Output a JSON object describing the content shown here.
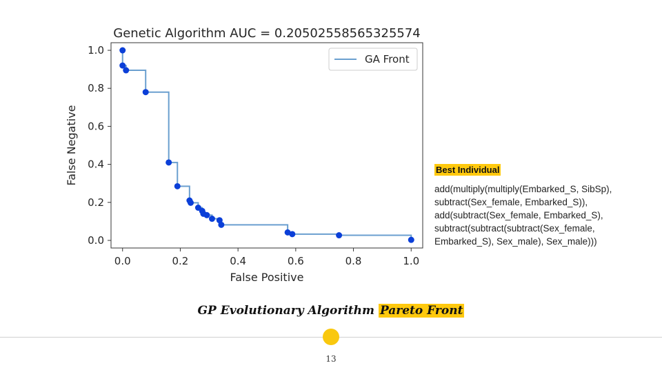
{
  "slide": {
    "best_heading": "Best Individual",
    "best_expression": "add(multiply(multiply(Embarked_S, SibSp),\nsubtract(Sex_female, Embarked_S)),\nadd(subtract(Sex_female, Embarked_S),\nsubtract(subtract(subtract(Sex_female,\nEmbarked_S), Sex_male), Sex_male)))",
    "caption_prefix": "GP Evolutionary Algorithm",
    "caption_highlight": "Pareto Front",
    "page_number": "13",
    "accent_color": "#ffc90e"
  },
  "chart_data": {
    "type": "line",
    "title": "Genetic Algorithm AUC = 0.20502558565325574",
    "xlabel": "False Positive",
    "ylabel": "False Negative",
    "xlim": [
      -0.04,
      1.04
    ],
    "ylim": [
      -0.04,
      1.04
    ],
    "x_ticks": [
      0.0,
      0.2,
      0.4,
      0.6,
      0.8,
      1.0
    ],
    "y_ticks": [
      0.0,
      0.2,
      0.4,
      0.6,
      0.8,
      1.0
    ],
    "x_tick_labels": [
      "0.0",
      "0.2",
      "0.4",
      "0.6",
      "0.8",
      "1.0"
    ],
    "y_tick_labels": [
      "0.0",
      "0.2",
      "0.4",
      "0.6",
      "0.8",
      "1.0"
    ],
    "grid": false,
    "legend_position": "top-right",
    "series": [
      {
        "name": "GA Front",
        "line_color": "#6a9fcf",
        "marker_color": "#0b3fd8",
        "step": true,
        "points": [
          [
            0.0,
            1.0
          ],
          [
            0.0,
            0.92
          ],
          [
            0.012,
            0.895
          ],
          [
            0.08,
            0.78
          ],
          [
            0.16,
            0.41
          ],
          [
            0.19,
            0.285
          ],
          [
            0.232,
            0.21
          ],
          [
            0.236,
            0.198
          ],
          [
            0.262,
            0.172
          ],
          [
            0.276,
            0.155
          ],
          [
            0.28,
            0.14
          ],
          [
            0.292,
            0.133
          ],
          [
            0.31,
            0.114
          ],
          [
            0.336,
            0.106
          ],
          [
            0.342,
            0.082
          ],
          [
            0.572,
            0.042
          ],
          [
            0.588,
            0.033
          ],
          [
            0.75,
            0.027
          ],
          [
            1.0,
            0.003
          ]
        ]
      }
    ]
  }
}
